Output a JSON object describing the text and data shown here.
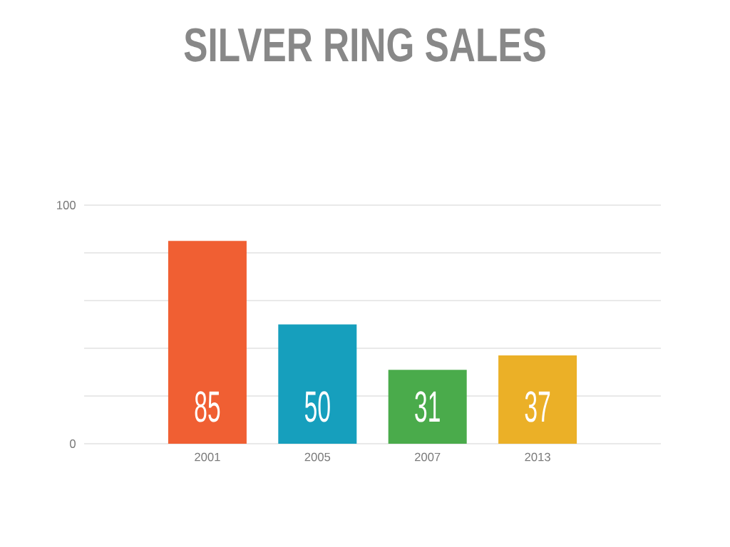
{
  "chart_data": {
    "type": "bar",
    "title": "SILVER RING SALES",
    "categories": [
      "2001",
      "2005",
      "2007",
      "2013"
    ],
    "values": [
      85,
      50,
      31,
      37
    ],
    "colors": [
      "#f05f33",
      "#169fbd",
      "#4aab4b",
      "#ebb027"
    ],
    "ylim": [
      0,
      100
    ],
    "yticks": [
      0,
      {
        "value": 20,
        "label": null
      },
      {
        "value": 40,
        "label": null
      },
      {
        "value": 60,
        "label": null
      },
      {
        "value": 80,
        "label": null
      },
      100
    ],
    "grid": "y",
    "data_labels": true
  }
}
